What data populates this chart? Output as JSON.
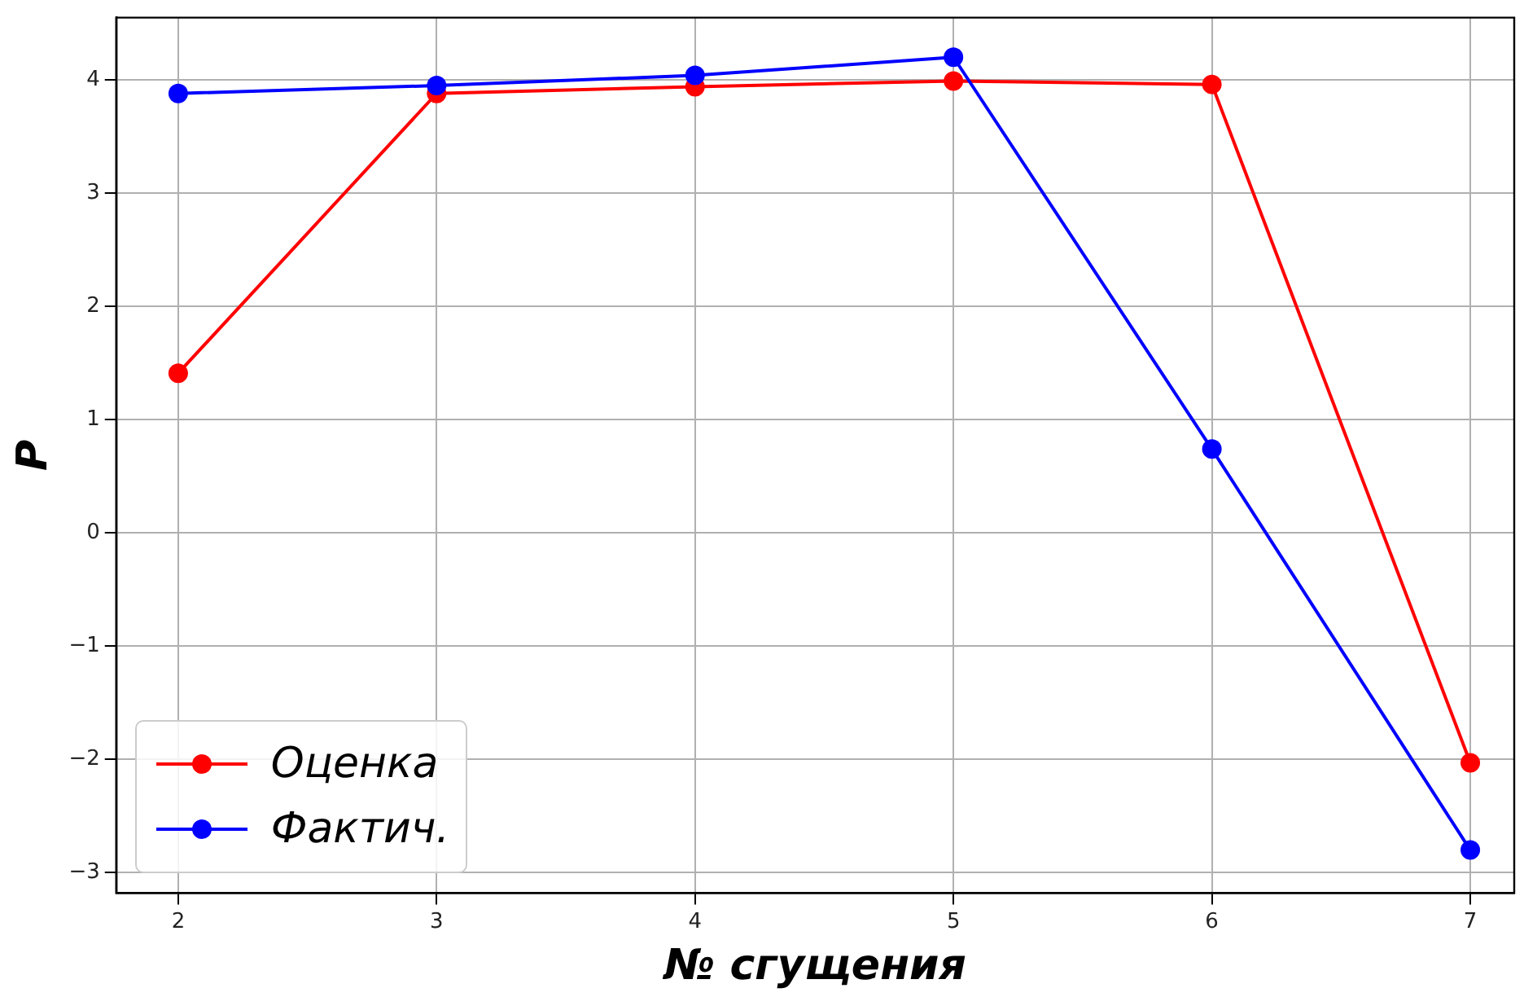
{
  "chart_data": {
    "type": "line",
    "xlabel": "№ сгущения",
    "ylabel": "P",
    "x": [
      2,
      3,
      4,
      5,
      6,
      7
    ],
    "series": [
      {
        "name": "Оценка",
        "color": "#ff0000",
        "values": [
          1.41,
          3.88,
          3.94,
          3.99,
          3.96,
          -2.03
        ]
      },
      {
        "name": "Фактич.",
        "color": "#0000ff",
        "values": [
          3.88,
          3.95,
          4.04,
          4.2,
          0.74,
          -2.8
        ]
      }
    ],
    "xlim": [
      1.76,
      7.17
    ],
    "ylim": [
      -3.18,
      4.55
    ],
    "xticks": [
      2,
      3,
      4,
      5,
      6,
      7
    ],
    "yticks": [
      {
        "value": -3,
        "label": "−3"
      },
      {
        "value": -2,
        "label": "−2"
      },
      {
        "value": -1,
        "label": "−1"
      },
      0,
      1,
      2,
      3,
      4
    ],
    "grid": true,
    "legend": "bottom left",
    "marker": "circle",
    "line_style": "solid"
  }
}
